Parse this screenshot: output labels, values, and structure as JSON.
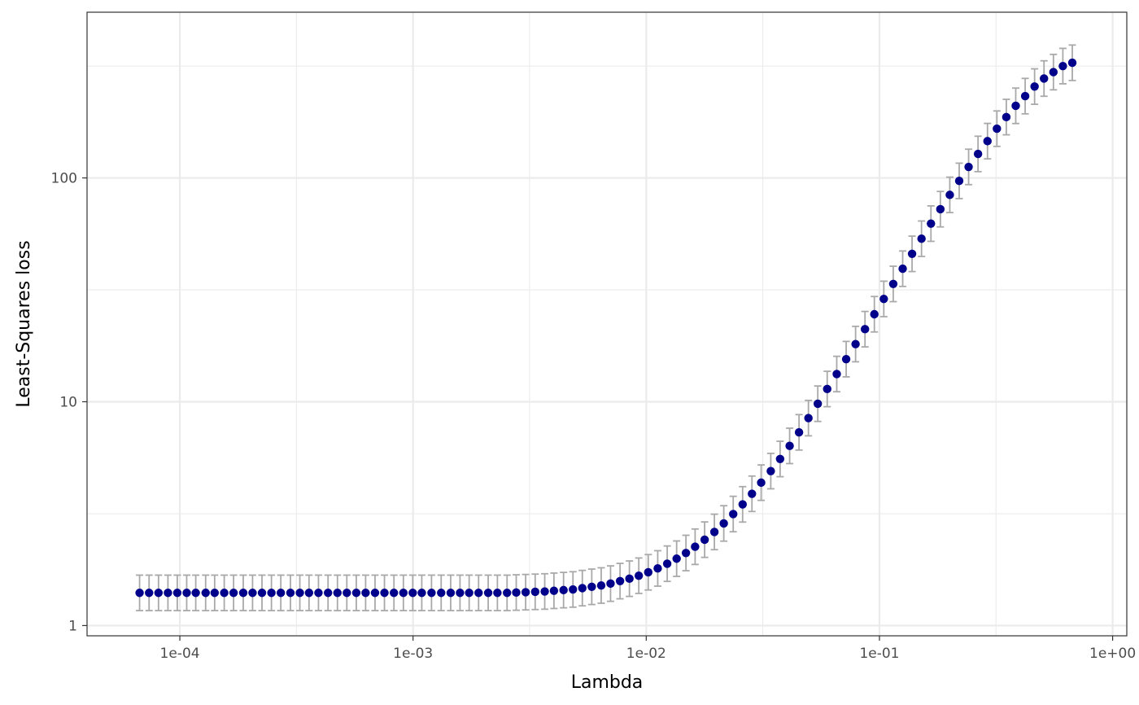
{
  "chart_data": {
    "type": "scatter",
    "title": "",
    "xlabel": "Lambda",
    "ylabel": "Least-Squares loss",
    "x_scale": "log10",
    "y_scale": "log10",
    "xlim": [
      4e-05,
      1.15
    ],
    "ylim": [
      0.9,
      550
    ],
    "x_ticks": [
      0.0001,
      0.001,
      0.01,
      0.1,
      1
    ],
    "x_tick_labels": [
      "1e-04",
      "1e-03",
      "1e-02",
      "1e-01",
      "1e+00"
    ],
    "y_ticks": [
      1,
      10,
      100
    ],
    "y_tick_labels": [
      "1",
      "10",
      "100"
    ],
    "y_minor_ticks": [
      3.16,
      31.6,
      316
    ],
    "x_minor_ticks": [
      0.000316,
      0.00316,
      0.0316,
      0.316
    ],
    "grid": true,
    "legend": "none",
    "colors": {
      "point": "#00008B",
      "error_bar": "#A9A9A9",
      "grid": "#EBEBEB",
      "panel_border": "#333333",
      "tick": "#333333"
    },
    "series": [
      {
        "x": [
          0.6714,
          0.6117,
          0.5573,
          0.5078,
          0.4627,
          0.4216,
          0.3841,
          0.35,
          0.3189,
          0.2906,
          0.2647,
          0.2412,
          0.2198,
          0.2003,
          0.1825,
          0.1663,
          0.1515,
          0.138,
          0.1258,
          0.1146,
          0.1044,
          0.0951,
          0.0867,
          0.079,
          0.072,
          0.0656,
          0.0597,
          0.0544,
          0.0496,
          0.0452,
          0.0412,
          0.0375,
          0.0342,
          0.0311,
          0.0284,
          0.0259,
          0.0236,
          0.0215,
          0.0196,
          0.0178,
          0.0162,
          0.0148,
          0.0135,
          0.0123,
          0.0112,
          0.0102,
          0.00929,
          0.00847,
          0.00772,
          0.00703,
          0.00641,
          0.00584,
          0.00532,
          0.00485,
          0.00442,
          0.00402,
          0.00367,
          0.00334,
          0.00304,
          0.00277,
          0.00253,
          0.0023,
          0.0021,
          0.00191,
          0.00174,
          0.00159,
          0.00145,
          0.00132,
          0.0012,
          0.00109,
          0.000997,
          0.000909,
          0.000828,
          0.000754,
          0.000687,
          0.000626,
          0.000571,
          0.00052,
          0.000474,
          0.000432,
          0.000393,
          0.000358,
          0.000327,
          0.000298,
          0.000271,
          0.000247,
          0.000225,
          0.000205,
          0.000187,
          0.00017,
          0.000155,
          0.000141,
          0.000129,
          0.000117,
          0.000107,
          9.75e-05,
          8.89e-05,
          8.1e-05,
          7.38e-05,
          6.72e-05
        ],
        "y": [
          327,
          316,
          297,
          278,
          256,
          232,
          210,
          187,
          166,
          146,
          128,
          112,
          97,
          84,
          72.5,
          62.5,
          53.5,
          45.8,
          39.3,
          33.6,
          28.8,
          24.6,
          21.1,
          18.1,
          15.5,
          13.3,
          11.4,
          9.8,
          8.45,
          7.3,
          6.35,
          5.55,
          4.9,
          4.35,
          3.88,
          3.48,
          3.15,
          2.86,
          2.62,
          2.42,
          2.25,
          2.11,
          1.99,
          1.89,
          1.8,
          1.73,
          1.67,
          1.62,
          1.58,
          1.54,
          1.51,
          1.49,
          1.47,
          1.45,
          1.44,
          1.43,
          1.42,
          1.415,
          1.41,
          1.405,
          1.4,
          1.4,
          1.4,
          1.4,
          1.4,
          1.4,
          1.4,
          1.4,
          1.4,
          1.4,
          1.4,
          1.4,
          1.4,
          1.4,
          1.4,
          1.4,
          1.4,
          1.4,
          1.4,
          1.4,
          1.4,
          1.4,
          1.4,
          1.4,
          1.4,
          1.4,
          1.4,
          1.4,
          1.4,
          1.4,
          1.4,
          1.4,
          1.4,
          1.4,
          1.4,
          1.4,
          1.4,
          1.4,
          1.4,
          1.4
        ],
        "y_err": 0.2
      }
    ]
  }
}
